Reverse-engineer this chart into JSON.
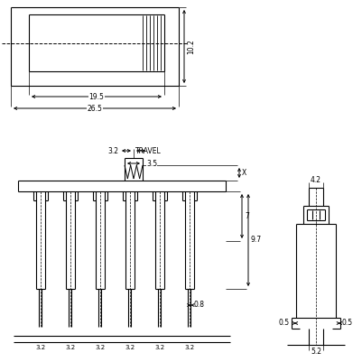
{
  "bg_color": "#ffffff",
  "fs": 5.5,
  "lw": 0.8
}
